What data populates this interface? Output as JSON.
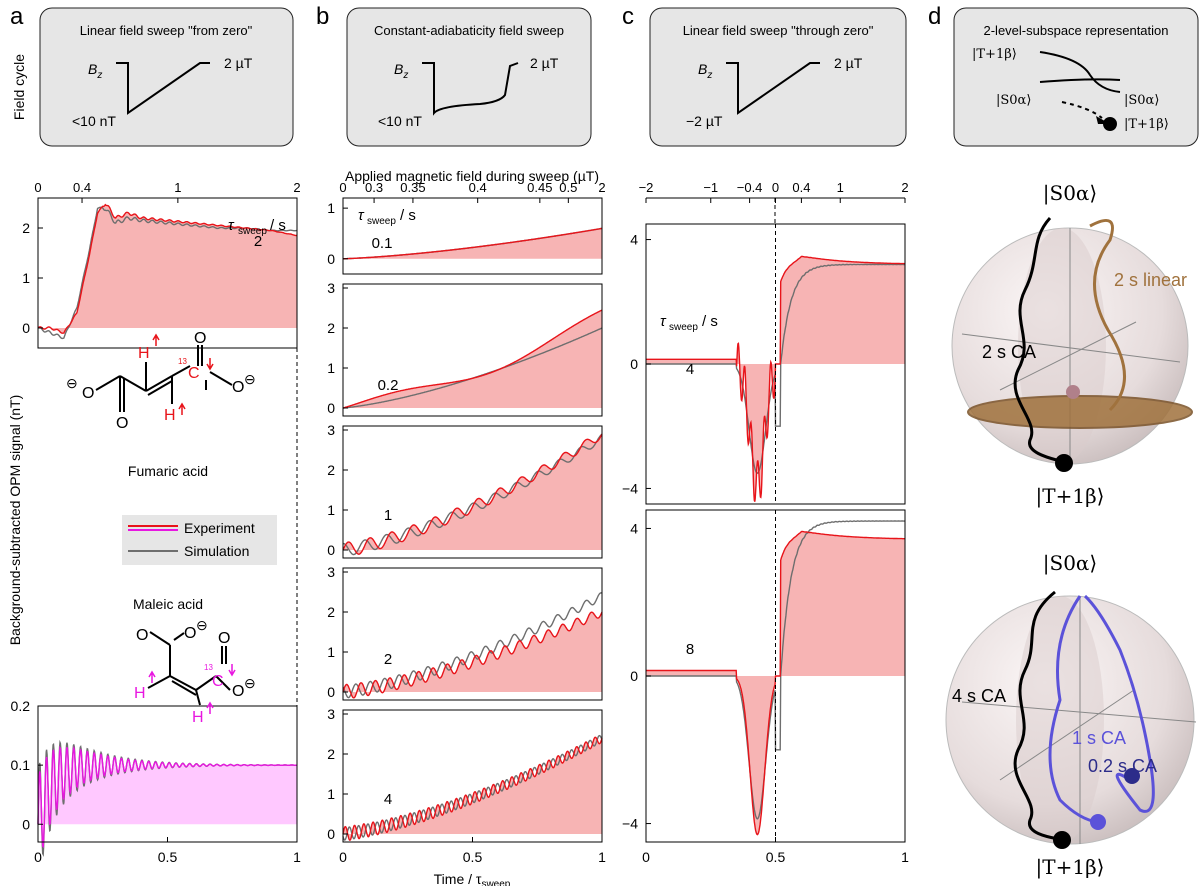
{
  "panel_letters": [
    "a",
    "b",
    "c",
    "d"
  ],
  "field_cycle_label": "Field cycle",
  "cycle_boxes": [
    {
      "title": "Linear field sweep \"from zero\"",
      "bz": "B",
      "bz_sub": "z",
      "top": "2 µT",
      "bottom": "<10 nT"
    },
    {
      "title": "Constant-adiabaticity field sweep",
      "bz": "B",
      "bz_sub": "z",
      "top": "2 µT",
      "bottom": "<10 nT"
    },
    {
      "title": "Linear field sweep \"through zero\"",
      "bz": "B",
      "bz_sub": "z",
      "top": "2 µT",
      "bottom": "−2 µT"
    },
    {
      "title": "2-level-subspace representation",
      "k_T": "|T+1β⟩",
      "k_S_left": "|S0α⟩",
      "k_S_right": "|S0α⟩",
      "k_T_right": "|T+1β⟩"
    }
  ],
  "ylabel": "Background-subtracted OPM signal (nT)",
  "xlabel_b": "Time / τsweep",
  "top_axis_b_label": "Applied magnetic field during sweep (µT)",
  "top_ticks_a": [
    "0",
    "0.4",
    "1",
    "2"
  ],
  "top_ticks_b": [
    "0",
    "0.3",
    "0.35",
    "0.4",
    "0.45",
    "0.5",
    "2"
  ],
  "top_ticks_c": [
    "−2",
    "−1",
    "−0.4",
    "0",
    "0.4",
    "1",
    "2"
  ],
  "tau_label": "τsweep / s",
  "legend": {
    "experiment": "Experiment",
    "simulation": "Simulation"
  },
  "molecules": {
    "fumaric": {
      "name": "Fumaric acid",
      "H": "H",
      "C": "C",
      "O": "O",
      "mass": "13",
      "minus": "⊖"
    },
    "maleic": {
      "name": "Maleic acid",
      "H": "H",
      "C": "C",
      "O": "O",
      "mass": "13",
      "minus": "⊖"
    }
  },
  "spheres": [
    {
      "top": "|S0α⟩",
      "bottom": "|T+1β⟩",
      "labels": [
        "2 s linear",
        "2 s CA"
      ]
    },
    {
      "top": "|S0α⟩",
      "bottom": "|T+1β⟩",
      "labels": [
        "4 s CA",
        "1 s CA",
        "0.2 s CA"
      ]
    }
  ],
  "colors": {
    "experiment": "#e8141a",
    "experiment_maleic": "#e817e0",
    "simulation": "#6e6e6e",
    "fill_red": "#f7b4b4",
    "fill_pink": "#ffc8ff",
    "box_bg": "#e6e6e6",
    "linear": "#a0723d",
    "ca_blue": "#5b52d9",
    "dark_blue": "#2c2c8a"
  },
  "chart_data": [
    {
      "type": "line",
      "panel": "a-top",
      "tau": "2",
      "xlim": [
        0,
        1
      ],
      "ylim": [
        -0.4,
        2.6
      ],
      "yticks": [
        0,
        1,
        2
      ],
      "x": [
        0,
        0.05,
        0.1,
        0.15,
        0.2,
        0.23,
        0.26,
        0.3,
        0.35,
        0.4,
        0.5,
        0.6,
        0.7,
        0.8,
        0.9,
        1.0
      ],
      "series": [
        {
          "name": "Experiment",
          "values": [
            0,
            0,
            -0.1,
            0.3,
            1.5,
            2.3,
            2.5,
            2.2,
            2.3,
            2.2,
            2.15,
            2.1,
            2.05,
            2.0,
            1.95,
            1.85
          ]
        },
        {
          "name": "Simulation",
          "values": [
            0,
            -0.1,
            -0.2,
            0.4,
            1.6,
            2.4,
            2.4,
            2.1,
            2.2,
            2.15,
            2.1,
            2.05,
            2.0,
            2.0,
            1.95,
            1.95
          ]
        }
      ]
    },
    {
      "type": "line",
      "panel": "a-bottom",
      "xlim": [
        0,
        1
      ],
      "ylim": [
        -0.03,
        0.2
      ],
      "yticks": [
        0,
        0.1,
        0.2
      ],
      "xticks": [
        0,
        0.5,
        1
      ],
      "description_of_series": "damped oscillation around 0.1",
      "series": [
        {
          "name": "Experiment",
          "final": 0.1
        },
        {
          "name": "Simulation",
          "final": 0.1
        }
      ]
    },
    {
      "type": "line",
      "panel": "b",
      "taus": [
        "0.1",
        "0.2",
        "1",
        "2",
        "4"
      ],
      "xlim": [
        0,
        1
      ],
      "ylims": [
        [
          -0.3,
          1.2
        ],
        [
          -0.2,
          3.1
        ],
        [
          -0.2,
          3.1
        ],
        [
          -0.2,
          3.1
        ],
        [
          -0.2,
          3.1
        ]
      ],
      "final_exp": [
        0.6,
        2.3,
        2.9,
        2.0,
        2.4
      ],
      "final_sim": [
        0.6,
        2.0,
        2.8,
        2.4,
        2.4
      ]
    },
    {
      "type": "line",
      "panel": "c",
      "taus": [
        "4",
        "8"
      ],
      "xlim": [
        0,
        1
      ],
      "ylim": [
        -4.5,
        4.5
      ],
      "yticks": [
        -4,
        0,
        4
      ],
      "min_exp": [
        -3.9,
        -4.3
      ],
      "max_exp": [
        3.9,
        4.3
      ],
      "final_exp": [
        3.2,
        3.7
      ]
    }
  ],
  "axis_ticks": {
    "x_bottom": [
      "0",
      "0.5",
      "1"
    ],
    "a_top_y": [
      "0",
      "1",
      "2"
    ],
    "a_bot_y": [
      "0",
      "0.1",
      "0.2"
    ],
    "b_y_first": [
      "0",
      "1"
    ],
    "b_y": [
      "0",
      "1",
      "2",
      "3"
    ],
    "c_y": [
      "−4",
      "0",
      "4"
    ]
  }
}
